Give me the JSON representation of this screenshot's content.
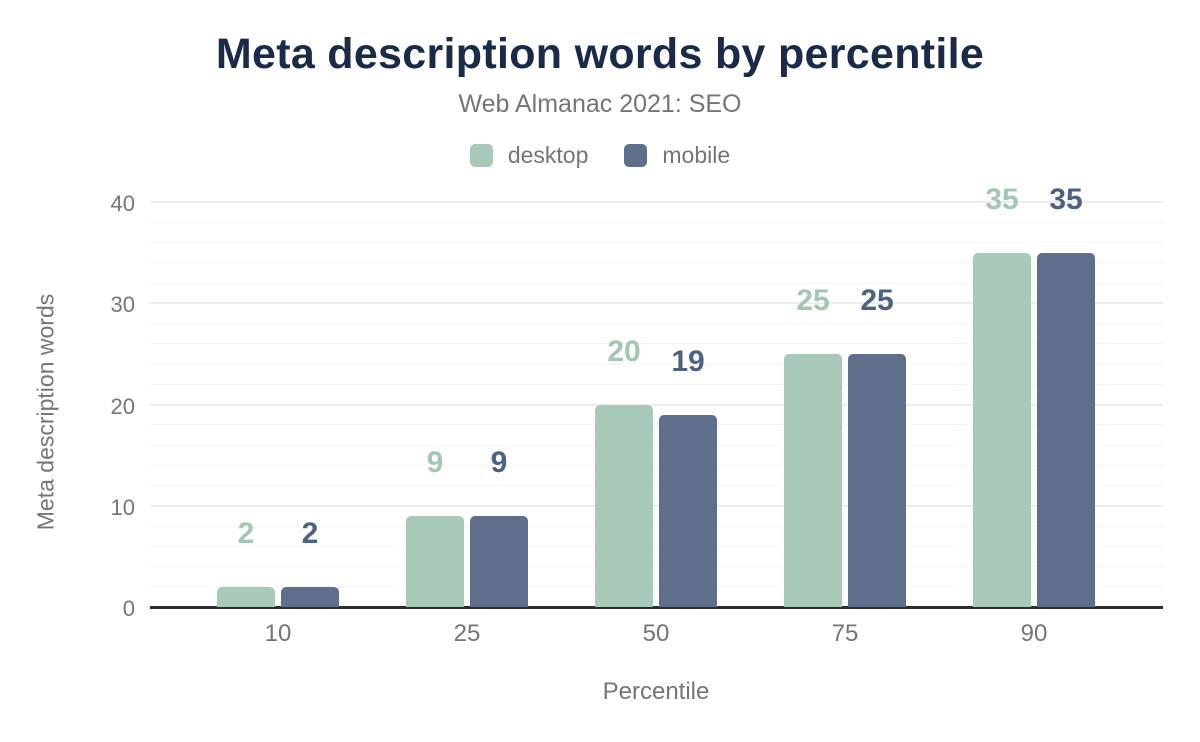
{
  "colors": {
    "background": "#ffffff",
    "title": "#1a2b49",
    "muted_text": "#757575",
    "axis_line": "#2d2d2d",
    "grid_major": "#ececec",
    "grid_minor": "#f5f5f5"
  },
  "chart_data": {
    "type": "bar",
    "title": "Meta description words by percentile",
    "subtitle": "Web Almanac 2021: SEO",
    "xlabel": "Percentile",
    "ylabel": "Meta description words",
    "categories": [
      "10",
      "25",
      "50",
      "75",
      "90"
    ],
    "series": [
      {
        "name": "desktop",
        "color": "#a8c9b8",
        "label_color": "#a4c7b3",
        "values": [
          2,
          9,
          20,
          25,
          35
        ],
        "data_labels": [
          "2",
          "9",
          "20",
          "25",
          "35"
        ]
      },
      {
        "name": "mobile",
        "color": "#5f6e8a",
        "label_color": "#4d6280",
        "values": [
          2,
          9,
          19,
          25,
          35
        ],
        "data_labels": [
          "2",
          "9",
          "19",
          "25",
          "35"
        ]
      }
    ],
    "ylim": [
      0,
      40
    ],
    "yticks": [
      0,
      10,
      20,
      30,
      40
    ],
    "minor_grid_step": 2,
    "grid": true,
    "legend_position": "top"
  }
}
